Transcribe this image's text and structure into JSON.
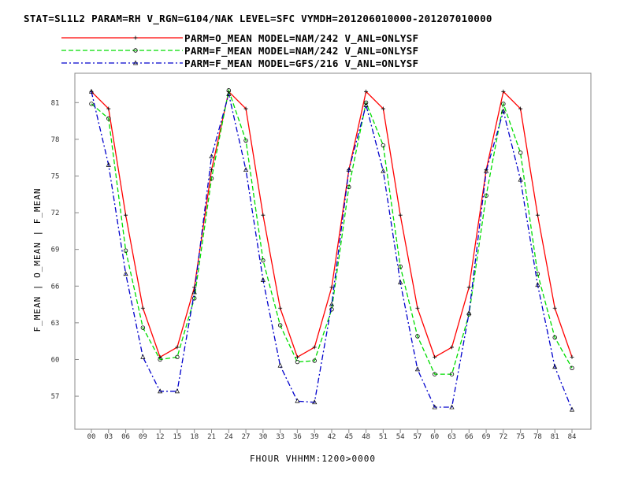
{
  "title": "STAT=SL1L2 PARAM=RH V_RGN=G104/NAK LEVEL=SFC VYMDH=201206010000-201207010000",
  "colors": {
    "o_mean": "#ff0000",
    "f_nam": "#00dd00",
    "f_gfs": "#0000cc"
  },
  "chart_data": {
    "type": "line",
    "title": "STAT=SL1L2 PARAM=RH V_RGN=G104/NAK LEVEL=SFC VYMDH=201206010000-201207010000",
    "xlabel": "FHOUR VHHMM:1200>0000",
    "ylabel": "F_MEAN | O_MEAN | F_MEAN",
    "ylim": [
      54.3,
      83.4
    ],
    "yticks": [
      "57",
      "60",
      "63",
      "66",
      "69",
      "72",
      "75",
      "78",
      "81"
    ],
    "x": [
      "00",
      "03",
      "06",
      "09",
      "12",
      "15",
      "18",
      "21",
      "24",
      "27",
      "30",
      "33",
      "36",
      "39",
      "42",
      "45",
      "48",
      "51",
      "54",
      "57",
      "60",
      "63",
      "66",
      "69",
      "72",
      "75",
      "78",
      "81",
      "84"
    ],
    "grid": false,
    "legend_position": "top",
    "series": [
      {
        "name": "PARM=O_MEAN MODEL=NAM/242 V_ANL=ONLYSF",
        "color": "#ff0000",
        "dash": "solid",
        "marker": "plus",
        "values": [
          81.9,
          80.5,
          71.8,
          64.2,
          60.2,
          61.0,
          65.9,
          75.5,
          81.9,
          80.5,
          71.8,
          64.2,
          60.2,
          61.0,
          65.9,
          75.5,
          81.9,
          80.5,
          71.8,
          64.2,
          60.2,
          61.0,
          65.9,
          75.5,
          81.9,
          80.5,
          71.8,
          64.2,
          60.2
        ]
      },
      {
        "name": "PARM=F_MEAN MODEL=NAM/242 V_ANL=ONLYSF",
        "color": "#00dd00",
        "dash": "dashed",
        "marker": "diamond",
        "values": [
          80.9,
          79.7,
          68.9,
          62.6,
          60.0,
          60.2,
          65.0,
          74.8,
          82.0,
          77.9,
          68.1,
          62.8,
          59.8,
          59.9,
          64.1,
          74.1,
          81.0,
          77.5,
          67.6,
          61.9,
          58.8,
          58.8,
          63.7,
          73.4,
          80.9,
          76.9,
          67.0,
          61.8,
          59.3
        ]
      },
      {
        "name": "PARM=F_MEAN MODEL=GFS/216 V_ANL=ONLYSF",
        "color": "#0000cc",
        "dash": "dashdot",
        "marker": "triangle",
        "values": [
          81.9,
          75.9,
          67.0,
          60.2,
          57.4,
          57.4,
          65.5,
          76.6,
          81.7,
          75.5,
          66.5,
          59.5,
          56.6,
          56.5,
          64.5,
          75.5,
          80.8,
          75.4,
          66.3,
          59.2,
          56.1,
          56.1,
          63.8,
          75.4,
          80.3,
          74.7,
          66.1,
          59.4,
          55.9
        ]
      }
    ]
  }
}
